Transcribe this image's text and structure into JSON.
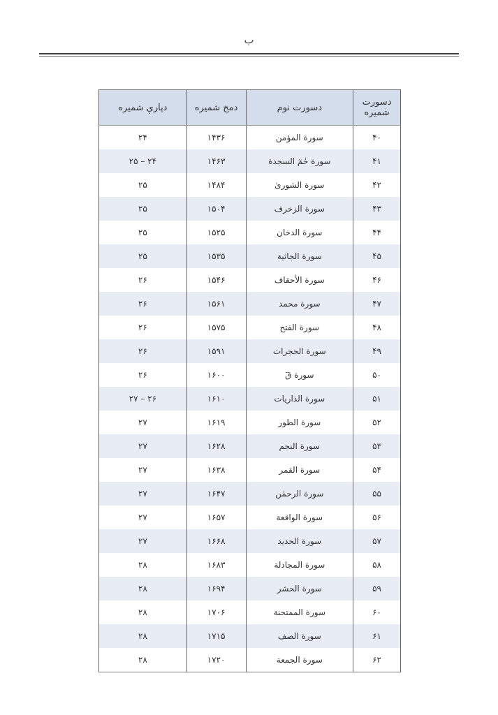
{
  "page_letter": "ب",
  "table": {
    "headers": {
      "number": "دسورت شمیره",
      "name": "دسورت نوم",
      "page": "دمخ شمیره",
      "para": "دپارې شمیره"
    },
    "rows": [
      {
        "number": "۴۰",
        "name": "سورة المؤمن",
        "page": "۱۴۳۶",
        "para": "۲۴"
      },
      {
        "number": "۴۱",
        "name": "سورة حٰمٓ السجدة",
        "page": "۱۴۶۳",
        "para": "۲۴ – ۲۵"
      },
      {
        "number": "۴۲",
        "name": "سورة الشورىٰ",
        "page": "۱۴۸۴",
        "para": "۲۵"
      },
      {
        "number": "۴۳",
        "name": "سورة الزخرف",
        "page": "۱۵۰۴",
        "para": "۲۵"
      },
      {
        "number": "۴۴",
        "name": "سورة الدخان",
        "page": "۱۵۲۵",
        "para": "۲۵"
      },
      {
        "number": "۴۵",
        "name": "سورة الجاثية",
        "page": "۱۵۳۵",
        "para": "۲۵"
      },
      {
        "number": "۴۶",
        "name": "سورة الأحقاف",
        "page": "۱۵۴۶",
        "para": "۲۶"
      },
      {
        "number": "۴۷",
        "name": "سورة محمد",
        "page": "۱۵۶۱",
        "para": "۲۶"
      },
      {
        "number": "۴۸",
        "name": "سورة الفتح",
        "page": "۱۵۷۵",
        "para": "۲۶"
      },
      {
        "number": "۴۹",
        "name": "سورة الحجرات",
        "page": "۱۵۹۱",
        "para": "۲۶"
      },
      {
        "number": "۵۰",
        "name": "سورة قٓ",
        "page": "۱۶۰۰",
        "para": "۲۶"
      },
      {
        "number": "۵۱",
        "name": "سورة الذاريات",
        "page": "۱۶۱۰",
        "para": "۲۶ – ۲۷"
      },
      {
        "number": "۵۲",
        "name": "سورة الطور",
        "page": "۱۶۱۹",
        "para": "۲۷"
      },
      {
        "number": "۵۳",
        "name": "سورة النجم",
        "page": "۱۶۲۸",
        "para": "۲۷"
      },
      {
        "number": "۵۴",
        "name": "سورة القمر",
        "page": "۱۶۳۸",
        "para": "۲۷"
      },
      {
        "number": "۵۵",
        "name": "سورة الرحمٰن",
        "page": "۱۶۴۷",
        "para": "۲۷"
      },
      {
        "number": "۵۶",
        "name": "سورة الواقعة",
        "page": "۱۶۵۷",
        "para": "۲۷"
      },
      {
        "number": "۵۷",
        "name": "سورة الحديد",
        "page": "۱۶۶۸",
        "para": "۲۷"
      },
      {
        "number": "۵۸",
        "name": "سورة المجادلة",
        "page": "۱۶۸۳",
        "para": "۲۸"
      },
      {
        "number": "۵۹",
        "name": "سورة الحشر",
        "page": "۱۶۹۴",
        "para": "۲۸"
      },
      {
        "number": "۶۰",
        "name": "سورة الممتحنة",
        "page": "۱۷۰۶",
        "para": "۲۸"
      },
      {
        "number": "۶۱",
        "name": "سورة الصف",
        "page": "۱۷۱۵",
        "para": "۲۸"
      },
      {
        "number": "۶۲",
        "name": "سورة الجمعة",
        "page": "۱۷۲۰",
        "para": "۲۸"
      }
    ]
  }
}
